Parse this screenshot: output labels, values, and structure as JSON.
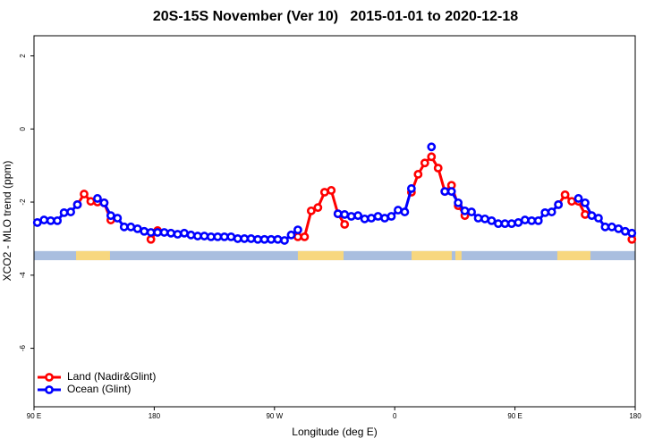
{
  "chart_data": {
    "type": "line",
    "title": "20S-15S November (Ver 10)   2015-01-01 to 2020-12-18",
    "x_label": "Longitude (deg E)",
    "y_label": "XCO2 - MLO trend (ppm)",
    "xlim": [
      90,
      540
    ],
    "xticks": [
      {
        "value": 90,
        "label": "90 E"
      },
      {
        "value": 180,
        "label": "180"
      },
      {
        "value": 270,
        "label": "90 W"
      },
      {
        "value": 360,
        "label": "0"
      },
      {
        "value": 450,
        "label": "90 E"
      },
      {
        "value": 540,
        "label": "180"
      }
    ],
    "ylim": [
      -7.6,
      2.55
    ],
    "yticks": [
      2,
      0,
      -2,
      -4,
      -6
    ],
    "legend": "bottom-left",
    "band": {
      "ylim": [
        -3.59,
        -3.34
      ],
      "ocean_color": "#a9bedf",
      "land_color": "#f7d77f",
      "land_ranges": [
        [
          121.5,
          146.9
        ],
        [
          287.5,
          321.7
        ],
        [
          372.6,
          402.7
        ],
        [
          405.4,
          410
        ],
        [
          481.7,
          506.5
        ]
      ]
    },
    "x": [
      92.5,
      97.5,
      102.5,
      107.5,
      112.5,
      117.5,
      122.5,
      127.5,
      132.5,
      137.5,
      142.5,
      147.5,
      152.5,
      157.5,
      162.5,
      167.5,
      172.5,
      177.5,
      182.5,
      187.5,
      192.5,
      197.5,
      202.5,
      207.5,
      212.5,
      217.5,
      222.5,
      227.5,
      232.5,
      237.5,
      242.5,
      247.5,
      252.5,
      257.5,
      262.5,
      267.5,
      272.5,
      277.5,
      282.5,
      287.5,
      292.5,
      297.5,
      302.5,
      307.5,
      312.5,
      317.5,
      322.5,
      327.5,
      332.5,
      337.5,
      342.5,
      347.5,
      352.5,
      357.5,
      362.5,
      367.5,
      372.5,
      377.5,
      382.5,
      387.5,
      392.5,
      397.5,
      402.5,
      407.5,
      412.5,
      417.5,
      422.5,
      427.5,
      432.5,
      437.5,
      442.5,
      447.5,
      452.5,
      457.5,
      462.5,
      467.5,
      472.5,
      477.5,
      482.5,
      487.5,
      492.5,
      497.5,
      502.5,
      507.5,
      512.5,
      517.5,
      522.5,
      527.5,
      532.5,
      537.5
    ],
    "series": [
      {
        "name": "Land (Nadir&Glint)",
        "color": "#ff0000",
        "values": [
          null,
          null,
          null,
          null,
          null,
          null,
          -2.07,
          -1.78,
          -1.98,
          -2.0,
          -2.02,
          -2.49,
          null,
          null,
          null,
          null,
          null,
          -3.02,
          -2.78,
          null,
          null,
          null,
          null,
          null,
          null,
          null,
          null,
          null,
          null,
          null,
          null,
          null,
          null,
          null,
          null,
          null,
          null,
          null,
          null,
          -2.95,
          -2.95,
          -2.24,
          -2.15,
          -1.73,
          -1.68,
          -2.32,
          -2.61,
          null,
          null,
          null,
          null,
          null,
          null,
          null,
          null,
          null,
          -1.73,
          -1.24,
          -0.93,
          -0.76,
          -1.07,
          -1.71,
          -1.54,
          -2.1,
          -2.37,
          null,
          null,
          null,
          null,
          null,
          null,
          null,
          null,
          null,
          null,
          null,
          null,
          null,
          -2.07,
          -1.8,
          -1.98,
          -1.98,
          -2.34,
          null,
          null,
          null,
          null,
          null,
          null,
          -3.02
        ]
      },
      {
        "name": "Ocean (Glint)",
        "color": "#0000ff",
        "values": [
          -2.56,
          -2.49,
          -2.51,
          -2.51,
          -2.29,
          -2.27,
          -2.07,
          null,
          null,
          -1.9,
          -2.02,
          -2.37,
          -2.44,
          -2.68,
          -2.68,
          -2.73,
          -2.8,
          -2.83,
          -2.83,
          -2.83,
          -2.85,
          -2.88,
          -2.85,
          -2.9,
          -2.93,
          -2.93,
          -2.95,
          -2.95,
          -2.95,
          -2.95,
          -3.0,
          -3.0,
          -3.0,
          -3.02,
          -3.02,
          -3.02,
          -3.02,
          -3.05,
          -2.9,
          -2.76,
          null,
          null,
          null,
          null,
          null,
          -2.32,
          -2.34,
          -2.39,
          -2.37,
          -2.46,
          -2.44,
          -2.39,
          -2.44,
          -2.39,
          -2.22,
          -2.27,
          -1.63,
          null,
          null,
          -0.49,
          null,
          -1.71,
          -1.71,
          -2.02,
          -2.24,
          -2.27,
          -2.44,
          -2.46,
          -2.51,
          -2.59,
          -2.59,
          -2.59,
          -2.56,
          -2.49,
          -2.51,
          -2.51,
          -2.29,
          -2.27,
          -2.07,
          null,
          null,
          -1.9,
          -2.02,
          -2.37,
          -2.44,
          -2.68,
          -2.68,
          -2.73,
          -2.8,
          -2.85
        ]
      }
    ]
  }
}
